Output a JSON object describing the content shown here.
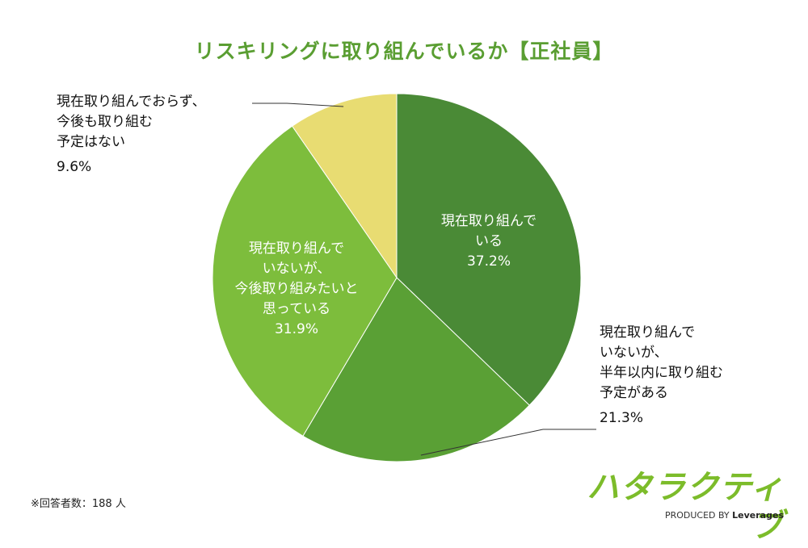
{
  "chart_data": {
    "type": "pie",
    "title": "リスキリングに取り組んでいるか【正社員】",
    "slices": [
      {
        "label_lines": [
          "現在取り組んで",
          "いる"
        ],
        "value": 37.2,
        "value_label": "37.2%",
        "color": "#4a8a36"
      },
      {
        "label_lines": [
          "現在取り組んで",
          "いないが、",
          "半年以内に取り組む",
          "予定がある"
        ],
        "value": 21.3,
        "value_label": "21.3%",
        "color": "#5aa035"
      },
      {
        "label_lines": [
          "現在取り組んで",
          "いないが、",
          "今後取り組みたいと",
          "思っている"
        ],
        "value": 31.9,
        "value_label": "31.9%",
        "color": "#7dbd3c"
      },
      {
        "label_lines": [
          "現在取り組んでおらず、",
          "今後も取り組む",
          "予定はない"
        ],
        "value": 9.6,
        "value_label": "9.6%",
        "color": "#e8dc72"
      }
    ]
  },
  "footnote": "※回答者数：188 人",
  "logo": {
    "main": "ハタラクティブ",
    "produced_by": "PRODUCED BY",
    "brand": "Leverages"
  }
}
